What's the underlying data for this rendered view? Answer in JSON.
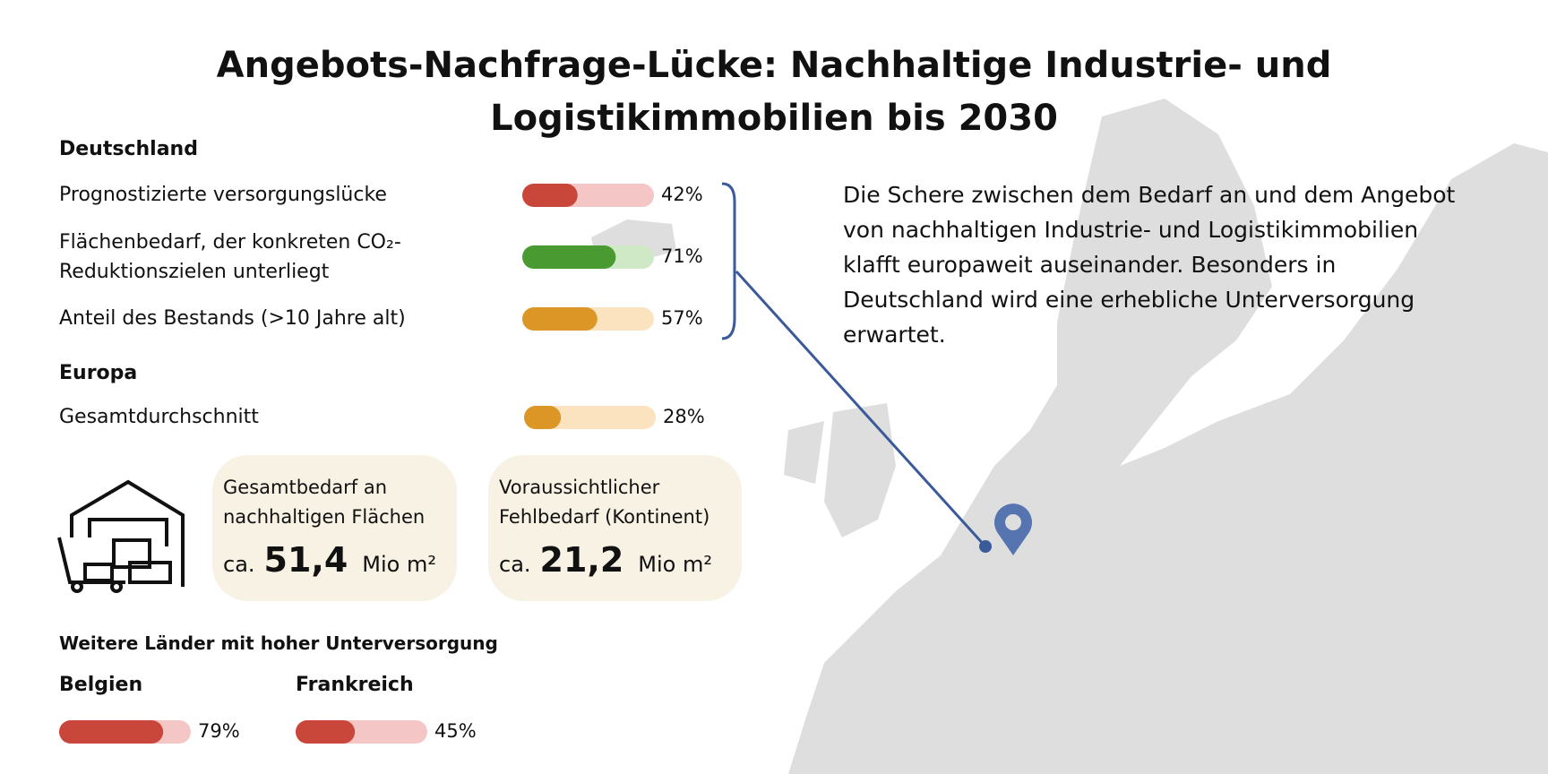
{
  "header": {
    "title": "Angebots-Nachfrage-Lücke: Nachhaltige Industrie- und Logistikimmobilien bis 2030"
  },
  "scale": [
    0,
    100
  ],
  "germany": {
    "heading": "Deutschland",
    "items": [
      {
        "label": "Prognostizierte versorgungslücke",
        "value": 42,
        "value_label": "42%",
        "color": "#c8463a",
        "track": "#f5c6c6"
      },
      {
        "label": "Flächenbedarf, der konkreten CO₂-Reduktionszielen unterliegt",
        "value": 71,
        "value_label": "71%",
        "color": "#4a9a32",
        "track": "#cfe8c6"
      },
      {
        "label": "Anteil des Bestands (>10 Jahre alt)",
        "value": 57,
        "value_label": "57%",
        "color": "#dc9625",
        "track": "#fbe3c0"
      }
    ]
  },
  "europe": {
    "heading": "Europa",
    "items": [
      {
        "label": "Gesamtdurchschnitt",
        "value": 28,
        "value_label": "28%",
        "color": "#dc9625",
        "track": "#fbe3c0"
      }
    ]
  },
  "summary": {
    "text": "Die Schere zwischen dem Bedarf an und dem Angebot von nachhaltigen Industrie- und Logistikimmobilien klafft europaweit auseinander. Besonders in Deutschland wird eine erhebliche Unterversorgung erwartet."
  },
  "cards": [
    {
      "label": "Gesamtbedarf an nachhaltigen Flächen",
      "prefix": "ca.",
      "amount": "51,4",
      "unit": "Mio m²"
    },
    {
      "label": "Voraussichtlicher Fehlbedarf (Kontinent)",
      "prefix": "ca.",
      "amount": "21,2",
      "unit": "Mio m²"
    }
  ],
  "others": {
    "heading": "Weitere Länder mit hoher Unterversorgung",
    "countries": [
      {
        "name": "Belgien",
        "value": 79,
        "value_label": "79%",
        "color": "#c8463a",
        "track": "#f5c6c6"
      },
      {
        "name": "Frankreich",
        "value": 45,
        "value_label": "45%",
        "color": "#c8463a",
        "track": "#f5c6c6"
      }
    ]
  }
}
